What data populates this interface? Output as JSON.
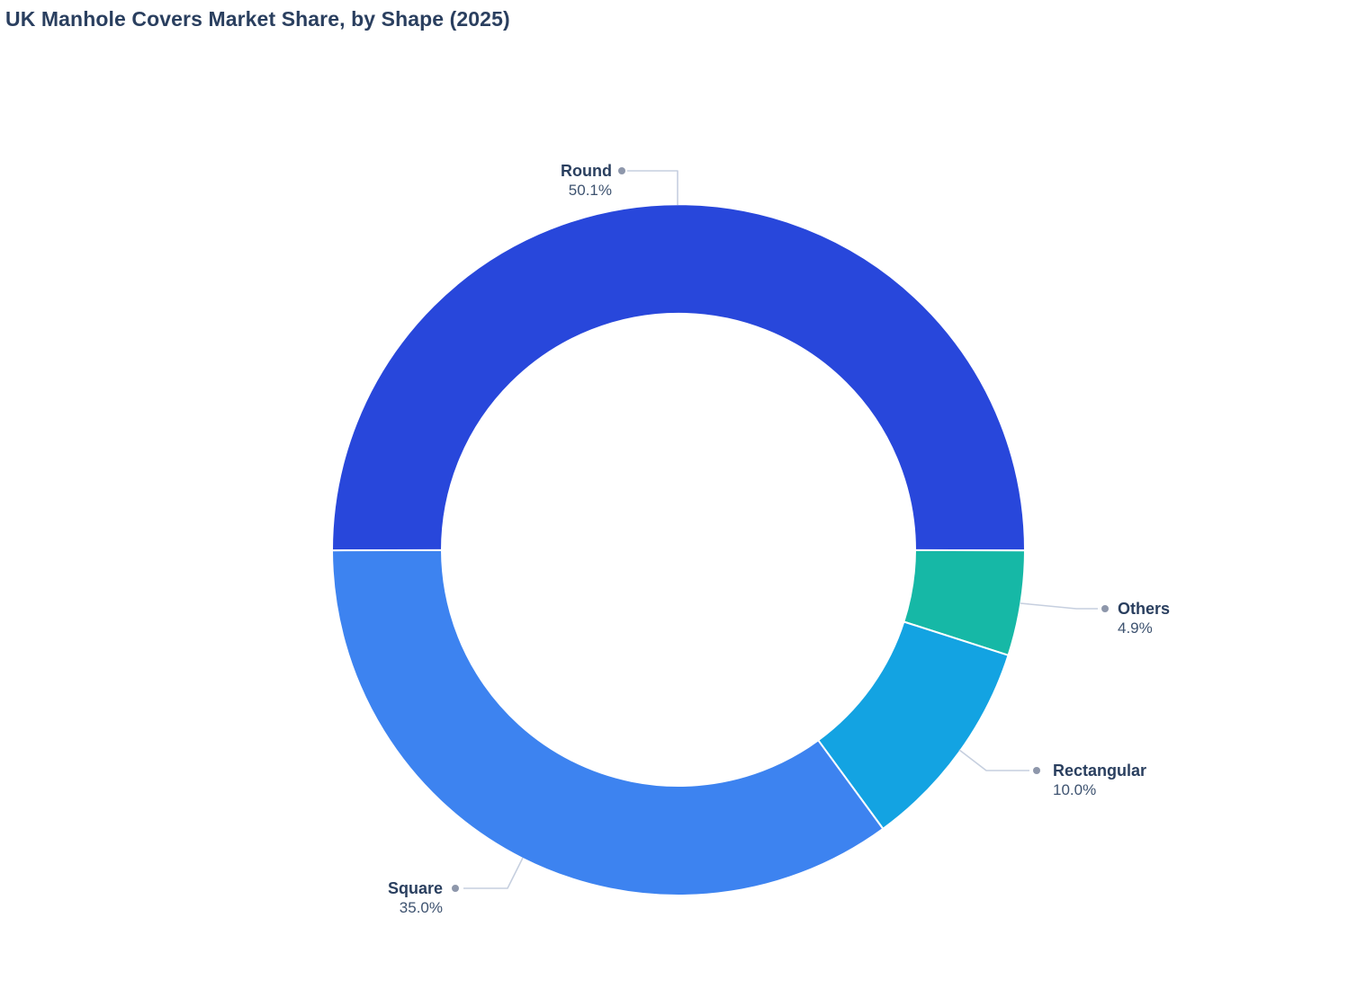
{
  "chart_data": {
    "type": "pie",
    "title": "UK Manhole Covers Market Share, by Shape (2025)",
    "subtype": "donut",
    "hole_ratio": 0.68,
    "legend": "none",
    "labels_outside": true,
    "slices": [
      {
        "label": "Round",
        "value": 50.1,
        "pct_label": "50.1%",
        "color": "#2847db"
      },
      {
        "label": "Square",
        "value": 35.0,
        "pct_label": "35.0%",
        "color": "#3d83f0"
      },
      {
        "label": "Rectangular",
        "value": 10.0,
        "pct_label": "10.0%",
        "color": "#13a3e2"
      },
      {
        "label": "Others",
        "value": 4.9,
        "pct_label": "4.9%",
        "color": "#16b8a6"
      }
    ],
    "layout_hints": {
      "first_slice_centered_at": "top",
      "slice_order_from_first": "counterclockwise",
      "separator_color": "#ffffff"
    },
    "style_colors": {
      "title_color": "#2a3f5f",
      "label_name_color": "#2a3f5f",
      "label_pct_color": "#3e5370",
      "leader_line_color": "#c6cfdf",
      "leader_dot_color": "#8e97ab",
      "background": "#ffffff"
    }
  }
}
